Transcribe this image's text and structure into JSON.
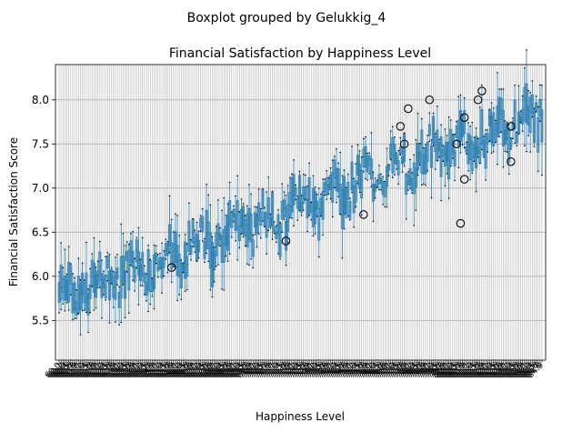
{
  "colors": {
    "box": "#1f77b4",
    "median": "#2ca02c",
    "whisker_cap": "#000000",
    "grid": "#b0b0b0",
    "outlier_edge": "#000000"
  },
  "chart_data": {
    "type": "boxplot",
    "suptitle": "Boxplot grouped by Gelukkig_4",
    "title": "Financial Satisfaction by Happiness Level",
    "xlabel": "Happiness Level",
    "ylabel": "Financial Satisfaction Score",
    "ylim": [
      5.05,
      8.4
    ],
    "yticks": [
      5.5,
      6.0,
      6.5,
      7.0,
      7.5,
      8.0
    ],
    "ytick_labels": [
      "5.5",
      "6.0",
      "6.5",
      "7.0",
      "7.5",
      "8.0"
    ],
    "grid": true,
    "group_count": 250,
    "group_value_range": [
      60.0,
      84.9
    ],
    "trend": {
      "start": 5.75,
      "end": 7.85
    },
    "outliers": [
      {
        "group_index": 58,
        "value": 6.1
      },
      {
        "group_index": 117,
        "value": 6.4
      },
      {
        "group_index": 157,
        "value": 6.7
      },
      {
        "group_index": 176,
        "value": 7.7
      },
      {
        "group_index": 178,
        "value": 7.5
      },
      {
        "group_index": 180,
        "value": 7.9
      },
      {
        "group_index": 191,
        "value": 8.0
      },
      {
        "group_index": 205,
        "value": 7.5
      },
      {
        "group_index": 207,
        "value": 6.6
      },
      {
        "group_index": 209,
        "value": 7.8
      },
      {
        "group_index": 209,
        "value": 7.1
      },
      {
        "group_index": 216,
        "value": 8.0
      },
      {
        "group_index": 218,
        "value": 8.1
      },
      {
        "group_index": 233,
        "value": 7.7
      },
      {
        "group_index": 233,
        "value": 7.3
      }
    ]
  }
}
